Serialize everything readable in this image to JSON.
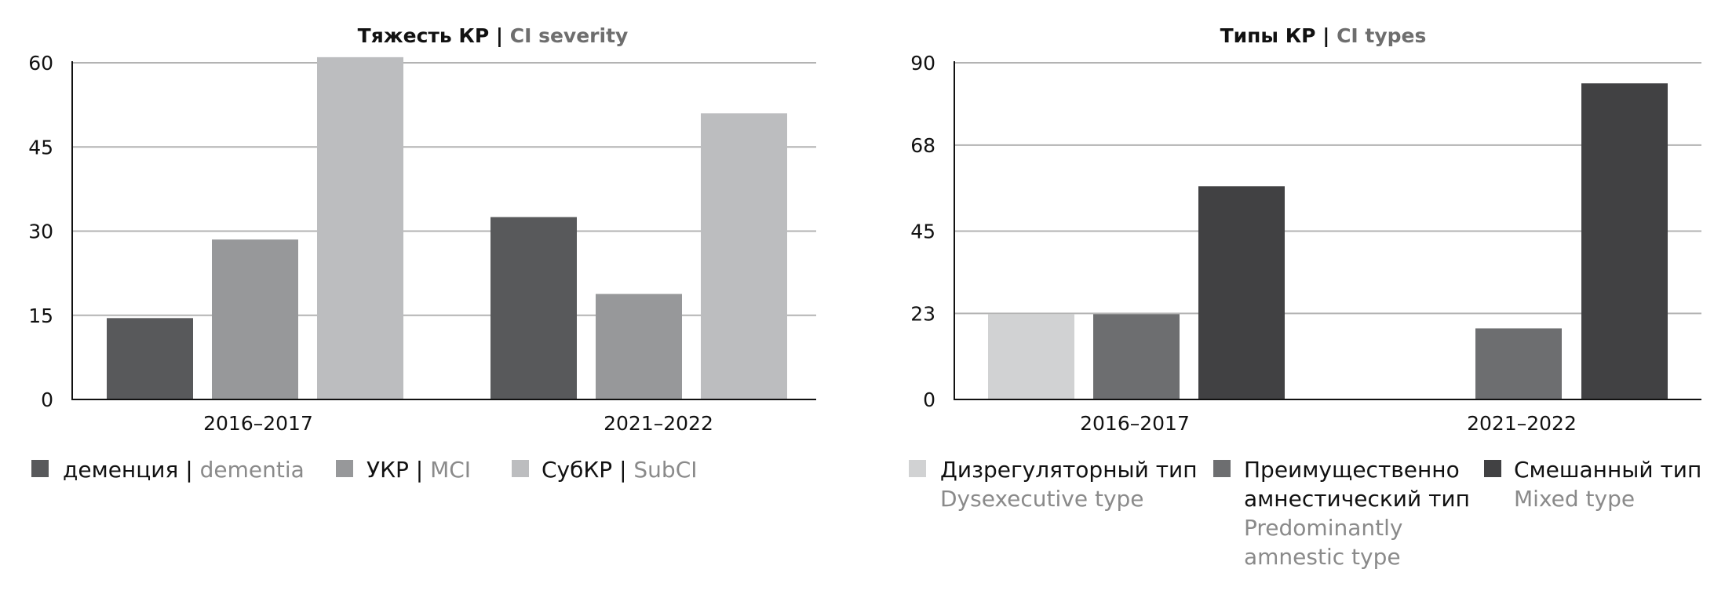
{
  "chart_data": [
    {
      "type": "bar",
      "title_ru": "Тяжесть КР",
      "title_sep": " | ",
      "title_en": "CI severity",
      "categories": [
        "2016–2017",
        "2021–2022"
      ],
      "yticks": [
        0,
        15,
        30,
        45,
        60
      ],
      "ylim": [
        0,
        60
      ],
      "grid": true,
      "legend_position": "bottom",
      "series": [
        {
          "name_ru": "деменция",
          "name_en": "dementia",
          "color": "#58595b",
          "values": [
            14.5,
            32.5
          ]
        },
        {
          "name_ru": "УКР",
          "name_en": "MCI",
          "color": "#97989a",
          "values": [
            28.5,
            18.8
          ]
        },
        {
          "name_ru": "СубКР",
          "name_en": "SubCI",
          "color": "#bcbdbf",
          "values": [
            61,
            51
          ]
        }
      ]
    },
    {
      "type": "bar",
      "title_ru": "Типы КР",
      "title_sep": " | ",
      "title_en": "CI types",
      "categories": [
        "2016–2017",
        "2021–2022"
      ],
      "yticks": [
        0,
        23,
        45,
        68,
        90
      ],
      "ylim": [
        0,
        90
      ],
      "grid": true,
      "legend_position": "bottom",
      "series": [
        {
          "name_ru": [
            "Дизрегуляторный тип"
          ],
          "name_en": [
            "Dysexecutive type"
          ],
          "color": "#d1d2d3",
          "values": [
            22.8,
            0
          ]
        },
        {
          "name_ru": [
            "Преимущественно",
            "амнестический тип"
          ],
          "name_en": [
            "Predominantly",
            "amnestic type"
          ],
          "color": "#6d6e70",
          "values": [
            22.8,
            19
          ]
        },
        {
          "name_ru": [
            "Смешанный тип"
          ],
          "name_en": [
            "Mixed type"
          ],
          "color": "#414143",
          "values": [
            57,
            84.5
          ]
        }
      ]
    }
  ]
}
